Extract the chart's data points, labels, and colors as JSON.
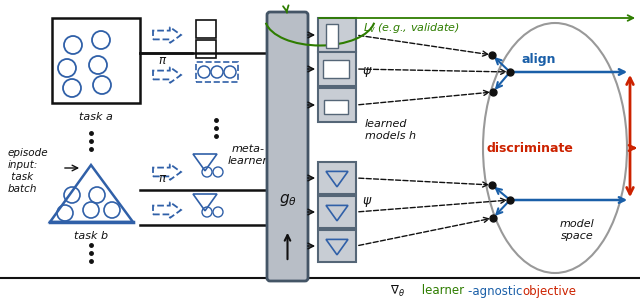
{
  "bg_color": "#ffffff",
  "task_a_label": "task a",
  "task_b_label": "task b",
  "episode_text_lines": [
    "episode",
    "input:",
    " task",
    "batch"
  ],
  "meta_learner_label": "meta-\nlearner",
  "g_theta_label": "$g_\\theta$",
  "learned_models_label": "learned\nmodels h",
  "model_space_label": "model\nspace",
  "lv_label": "$L_v$ (e.g., validate)",
  "align_label": "align",
  "discriminate_label": "discriminate",
  "pi_label": "$\\pi$",
  "psi_label": "$\\psi$",
  "nabla_label": "$\\nabla_\\theta$",
  "learner_label": " learner",
  "agnostic_label": "-agnostic ",
  "objective_label": "objective",
  "green_color": "#2e7d00",
  "blue_color": "#1a5fa8",
  "red_color": "#cc2200",
  "dark_color": "#111111",
  "box_face": "#c8cdd4",
  "box_edge": "#556677",
  "task_box_blue": "#3060a8"
}
